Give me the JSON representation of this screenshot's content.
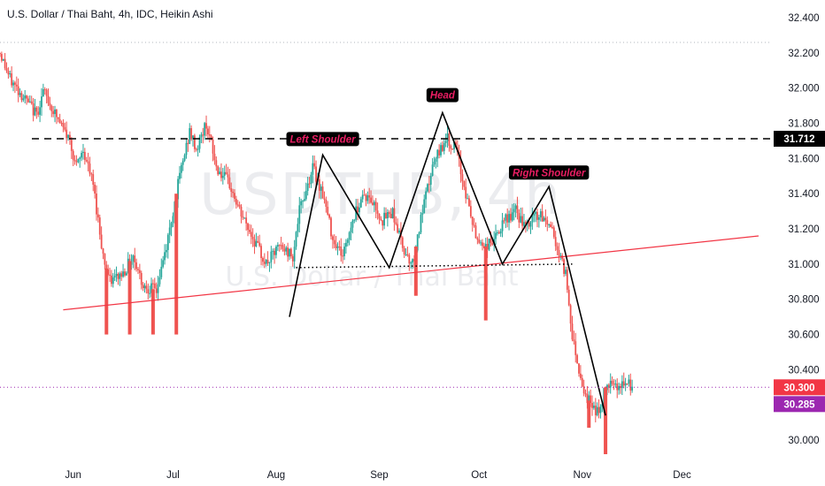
{
  "header": {
    "title": "U.S. Dollar / Thai Baht, 4h, IDC, Heikin Ashi"
  },
  "watermark": {
    "symbol": "USDTHB, 4h",
    "name": "U.S. Dollar / Thai Baht"
  },
  "colors": {
    "up": "#26a69a",
    "down": "#ef5350",
    "trendline": "#f23645",
    "pattern": "#000000",
    "last_price_bg": "#f23645",
    "marker_bg": "#9c27b0",
    "label_bg": "#000000",
    "label_text": "#e91e63"
  },
  "chart_data": {
    "type": "candlestick",
    "symbol": "USDTHB",
    "ylim": [
      29.92,
      32.42
    ],
    "y_ticks": [
      "32.400",
      "32.200",
      "32.000",
      "31.800",
      "31.600",
      "31.400",
      "31.200",
      "31.000",
      "30.800",
      "30.600",
      "30.400",
      "30.000"
    ],
    "x_ticks": [
      {
        "label": "Jun",
        "day": 22
      },
      {
        "label": "Jul",
        "day": 52
      },
      {
        "label": "Aug",
        "day": 83
      },
      {
        "label": "Sep",
        "day": 114
      },
      {
        "label": "Oct",
        "day": 144
      },
      {
        "label": "Nov",
        "day": 175
      },
      {
        "label": "Dec",
        "day": 205
      }
    ],
    "xlim": [
      0,
      232
    ],
    "price_path": [
      [
        0,
        32.2
      ],
      [
        3,
        32.05
      ],
      [
        7,
        31.95
      ],
      [
        11,
        31.85
      ],
      [
        13,
        31.98
      ],
      [
        18,
        31.8
      ],
      [
        21,
        31.7
      ],
      [
        23,
        31.55
      ],
      [
        25,
        31.65
      ],
      [
        28,
        31.45
      ],
      [
        31,
        31.05
      ],
      [
        33,
        30.9
      ],
      [
        37,
        30.95
      ],
      [
        40,
        31.05
      ],
      [
        43,
        30.88
      ],
      [
        47,
        30.85
      ],
      [
        50,
        31.1
      ],
      [
        54,
        31.5
      ],
      [
        57,
        31.75
      ],
      [
        59,
        31.65
      ],
      [
        62,
        31.8
      ],
      [
        65,
        31.55
      ],
      [
        69,
        31.45
      ],
      [
        72,
        31.3
      ],
      [
        76,
        31.15
      ],
      [
        80,
        31.0
      ],
      [
        84,
        31.1
      ],
      [
        88,
        31.05
      ],
      [
        90,
        31.3
      ],
      [
        94,
        31.55
      ],
      [
        97,
        31.4
      ],
      [
        100,
        31.15
      ],
      [
        103,
        31.05
      ],
      [
        106,
        31.25
      ],
      [
        109,
        31.4
      ],
      [
        112,
        31.35
      ],
      [
        115,
        31.25
      ],
      [
        118,
        31.3
      ],
      [
        121,
        31.1
      ],
      [
        124,
        31.0
      ],
      [
        127,
        31.3
      ],
      [
        130,
        31.55
      ],
      [
        134,
        31.72
      ],
      [
        137,
        31.65
      ],
      [
        140,
        31.4
      ],
      [
        143,
        31.15
      ],
      [
        146,
        31.1
      ],
      [
        149,
        31.15
      ],
      [
        152,
        31.25
      ],
      [
        155,
        31.3
      ],
      [
        158,
        31.2
      ],
      [
        161,
        31.28
      ],
      [
        164,
        31.25
      ],
      [
        166,
        31.2
      ],
      [
        168,
        31.05
      ],
      [
        170,
        30.95
      ],
      [
        172,
        30.6
      ],
      [
        174,
        30.4
      ],
      [
        176,
        30.25
      ],
      [
        178,
        30.2
      ],
      [
        180,
        30.15
      ],
      [
        182,
        30.3
      ],
      [
        184,
        30.35
      ],
      [
        186,
        30.3
      ],
      [
        188,
        30.32
      ],
      [
        190,
        30.3
      ]
    ],
    "spikes": [
      {
        "day": 32,
        "low": 30.6
      },
      {
        "day": 39,
        "low": 30.6
      },
      {
        "day": 46,
        "low": 30.6
      },
      {
        "day": 53,
        "low": 30.6
      },
      {
        "day": 125,
        "low": 30.82
      },
      {
        "day": 146,
        "low": 30.68
      },
      {
        "day": 177,
        "low": 30.07
      },
      {
        "day": 182,
        "low": 29.92
      }
    ],
    "resistance_level": 31.712,
    "last_price": 30.3,
    "marker_price": 30.285,
    "neckline": {
      "day_start": 89,
      "day_end": 172,
      "price_start": 30.98,
      "price_end": 31.0
    },
    "trendline": {
      "day_start": 19,
      "day_end": 228,
      "price_start": 30.74,
      "price_end": 31.16
    },
    "pattern_points": [
      {
        "day": 87,
        "price": 30.7
      },
      {
        "day": 97,
        "price": 31.62
      },
      {
        "day": 117,
        "price": 30.98
      },
      {
        "day": 133,
        "price": 31.86
      },
      {
        "day": 151,
        "price": 31.0
      },
      {
        "day": 165,
        "price": 31.44
      },
      {
        "day": 182,
        "price": 30.14
      }
    ],
    "annotations": [
      {
        "text": "Left Shoulder",
        "day": 97,
        "price": 31.71
      },
      {
        "text": "Head",
        "day": 133,
        "price": 31.96
      },
      {
        "text": "Right Shoulder",
        "day": 165,
        "price": 31.52
      }
    ]
  }
}
